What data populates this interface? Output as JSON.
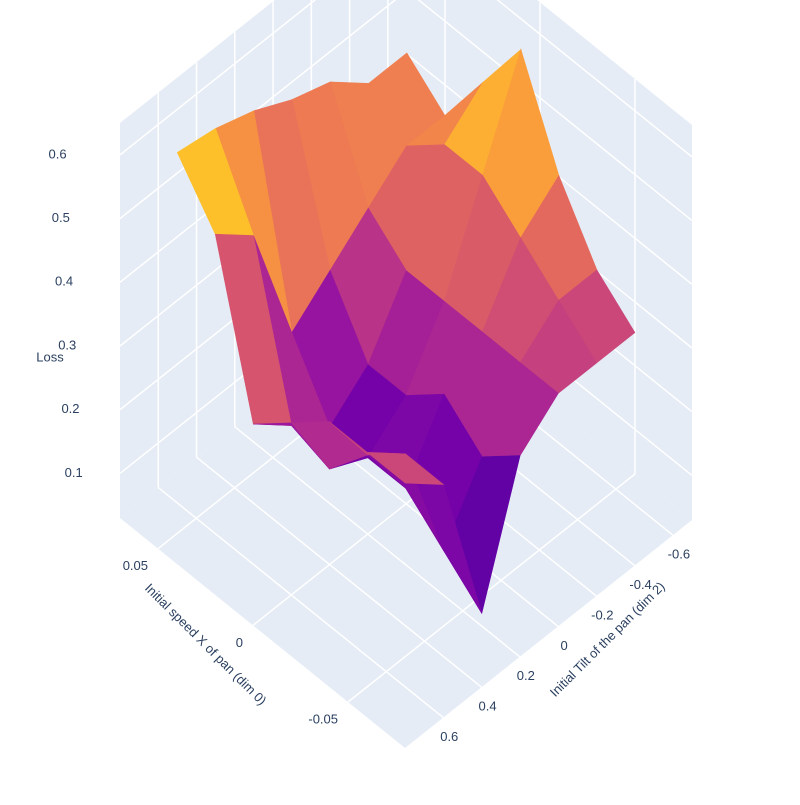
{
  "chart_data": {
    "type": "surface",
    "x_label": "Initial speed X of pan (dim 0)",
    "y_label": "Initial Tilt of the pan (dim 2)",
    "z_label": "Loss",
    "x": [
      0.06,
      0.04,
      0.02,
      0,
      -0.02,
      -0.04,
      -0.06
    ],
    "y": [
      -0.6,
      -0.4,
      -0.2,
      0,
      0.2,
      0.4,
      0.6
    ],
    "z": [
      [
        0.45,
        0.45,
        0.5,
        0.52,
        0.55,
        0.57,
        0.58
      ],
      [
        0.4,
        0.4,
        0.35,
        0.3,
        0.25,
        0.45,
        0.5
      ],
      [
        0.5,
        0.45,
        0.3,
        0.2,
        0.15,
        0.2,
        0.25
      ],
      [
        0.6,
        0.45,
        0.3,
        0.2,
        0.15,
        0.18,
        0.3
      ],
      [
        0.45,
        0.4,
        0.3,
        0.25,
        0.15,
        0.25,
        0.35
      ],
      [
        0.35,
        0.35,
        0.3,
        0.2,
        0.1,
        0.3,
        0.35
      ],
      [
        0.3,
        0.3,
        0.3,
        0.25,
        0.05,
        0.3,
        0.35
      ]
    ],
    "xlim": [
      0.07,
      -0.08
    ],
    "xticks": [
      0.05,
      0,
      -0.05
    ],
    "ylim": [
      0.8,
      -0.7
    ],
    "yticks": [
      0.6,
      0.4,
      0.2,
      0,
      -0.2,
      -0.4,
      -0.6
    ],
    "zlim": [
      0.03,
      0.65
    ],
    "zticks": [
      0.1,
      0.2,
      0.3,
      0.4,
      0.5,
      0.6
    ],
    "colorscale": [
      "#0d0887",
      "#46039f",
      "#7201a8",
      "#9c179e",
      "#bd3786",
      "#d8576b",
      "#ed7953",
      "#fb9f3a",
      "#fdca26",
      "#f0f921"
    ],
    "grid": true
  }
}
